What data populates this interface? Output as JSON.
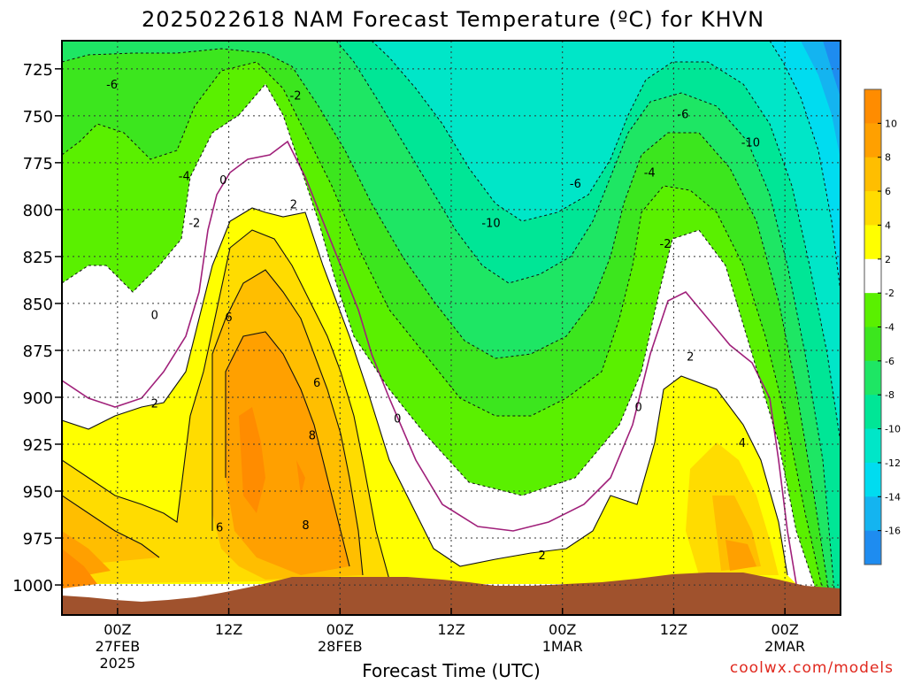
{
  "title": "2025022618 NAM Forecast Temperature (ºC) for KHVN",
  "credit": "coolwx.com/models",
  "colors": {
    "below_neg16": "#1e8cf0",
    "neg16_neg14": "#14b4f0",
    "neg14_neg12": "#00dcf0",
    "neg12_neg10": "#00e6c8",
    "neg10_neg8": "#00e696",
    "neg8_neg6": "#1ee664",
    "neg6_neg4": "#3ce61e",
    "neg4_neg2": "#5af000",
    "neg2_2": "#ffffff",
    "2_4": "#ffff00",
    "4_6": "#ffdc00",
    "6_8": "#ffbe00",
    "8_10": "#ffa000",
    "above_10": "#ff8c00",
    "terrain": "#a0522d",
    "zero_isotherm": "#a0207a"
  },
  "chart_data": {
    "type": "heatmap",
    "title": "2025022618 NAM Forecast Temperature (ºC) for KHVN",
    "xlabel": "Forecast Time (UTC)",
    "ylabel": "",
    "y_axis": {
      "unit": "hPa",
      "ticks": [
        "725",
        "750",
        "775",
        "800",
        "825",
        "850",
        "875",
        "900",
        "925",
        "950",
        "975",
        "1000"
      ],
      "range": [
        1016,
        710
      ],
      "inverted": true
    },
    "x_axis": {
      "ticks": [
        {
          "label": "00Z",
          "sub": "27FEB",
          "sub2": "2025"
        },
        {
          "label": "12Z",
          "sub": "",
          "sub2": ""
        },
        {
          "label": "00Z",
          "sub": "28FEB",
          "sub2": ""
        },
        {
          "label": "12Z",
          "sub": "",
          "sub2": ""
        },
        {
          "label": "00Z",
          "sub": "1MAR",
          "sub2": ""
        },
        {
          "label": "12Z",
          "sub": "",
          "sub2": ""
        },
        {
          "label": "00Z",
          "sub": "2MAR",
          "sub2": ""
        }
      ],
      "hours_since_start_at_ticks": [
        6,
        18,
        30,
        42,
        54,
        66,
        78
      ],
      "range_hours": [
        0,
        84
      ]
    },
    "grid": true,
    "legend": {
      "position": "right",
      "labels": [
        "10",
        "8",
        "6",
        "4",
        "2",
        "-2",
        "-4",
        "-6",
        "-8",
        "-10",
        "-12",
        "-14",
        "-16"
      ]
    },
    "contour_labels": [
      {
        "text": "-6",
        "hour": 5.4,
        "p": 733
      },
      {
        "text": "-2",
        "hour": 25.2,
        "p": 739
      },
      {
        "text": "-4",
        "hour": 13.2,
        "p": 782
      },
      {
        "text": "0",
        "hour": 17.4,
        "p": 784
      },
      {
        "text": "-2",
        "hour": 14.3,
        "p": 807
      },
      {
        "text": "2",
        "hour": 25.0,
        "p": 797
      },
      {
        "text": "0",
        "hour": 10.0,
        "p": 856
      },
      {
        "text": "6",
        "hour": 18.0,
        "p": 857
      },
      {
        "text": "2",
        "hour": 10.0,
        "p": 903
      },
      {
        "text": "6",
        "hour": 27.5,
        "p": 892
      },
      {
        "text": "8",
        "hour": 27.0,
        "p": 920
      },
      {
        "text": "8",
        "hour": 26.3,
        "p": 968
      },
      {
        "text": "6",
        "hour": 17.0,
        "p": 969
      },
      {
        "text": "0",
        "hour": 36.2,
        "p": 911
      },
      {
        "text": "-10",
        "hour": 46.3,
        "p": 807
      },
      {
        "text": "-6",
        "hour": 55.4,
        "p": 786
      },
      {
        "text": "-4",
        "hour": 63.4,
        "p": 780
      },
      {
        "text": "-6",
        "hour": 67.0,
        "p": 749
      },
      {
        "text": "-10",
        "hour": 74.3,
        "p": 764
      },
      {
        "text": "-2",
        "hour": 65.1,
        "p": 818
      },
      {
        "text": "2",
        "hour": 67.8,
        "p": 878
      },
      {
        "text": "0",
        "hour": 62.2,
        "p": 905
      },
      {
        "text": "4",
        "hour": 73.4,
        "p": 924
      },
      {
        "text": "2",
        "hour": 51.8,
        "p": 984
      }
    ]
  }
}
